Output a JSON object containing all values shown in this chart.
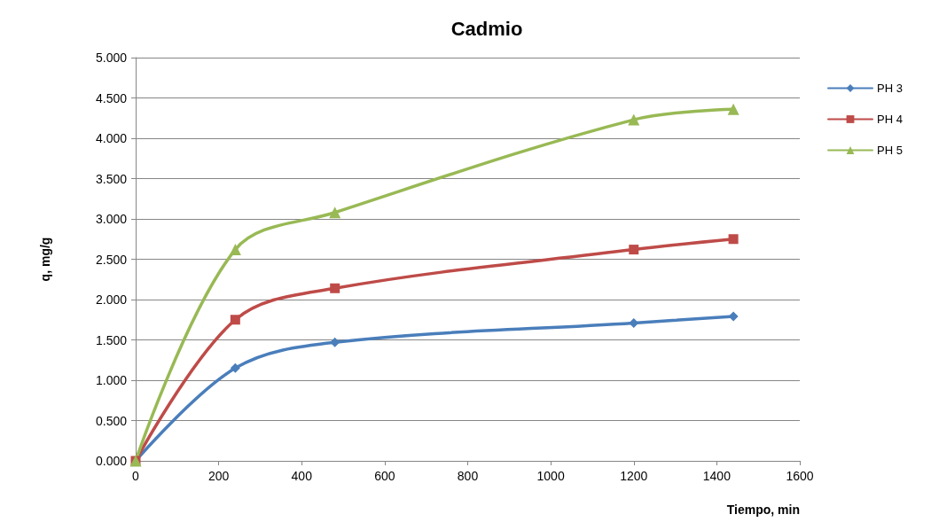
{
  "chart_data": {
    "type": "line",
    "title": "Cadmio",
    "xlabel": "Tiempo, min",
    "ylabel": "q, mg/g",
    "x": [
      0,
      240,
      480,
      1200,
      1440
    ],
    "series": [
      {
        "name": "PH 3",
        "color": "#4a7ebb",
        "marker": "diamond",
        "values": [
          0,
          1.15,
          1.47,
          1.71,
          1.79
        ]
      },
      {
        "name": "PH 4",
        "color": "#be4b48",
        "marker": "square",
        "values": [
          0,
          1.75,
          2.14,
          2.62,
          2.75
        ]
      },
      {
        "name": "PH 5",
        "color": "#98b954",
        "marker": "triangle",
        "values": [
          0,
          2.62,
          3.08,
          4.23,
          4.36
        ]
      }
    ],
    "xlim": [
      0,
      1600
    ],
    "xticks": [
      0,
      200,
      400,
      600,
      800,
      1000,
      1200,
      1400,
      1600
    ],
    "ylim": [
      0,
      5
    ],
    "yticks": [
      {
        "value": 0,
        "label": "0.000"
      },
      {
        "value": 0.5,
        "label": "0.500"
      },
      {
        "value": 1,
        "label": "1.000"
      },
      {
        "value": 1.5,
        "label": "1.500"
      },
      {
        "value": 2,
        "label": "2.000"
      },
      {
        "value": 2.5,
        "label": "2.500"
      },
      {
        "value": 3,
        "label": "3.000"
      },
      {
        "value": 3.5,
        "label": "3.500"
      },
      {
        "value": 4,
        "label": "4.000"
      },
      {
        "value": 4.5,
        "label": "4.500"
      },
      {
        "value": 5,
        "label": "5.000"
      }
    ],
    "grid": "y",
    "legend": "right",
    "line_style": "solid"
  }
}
